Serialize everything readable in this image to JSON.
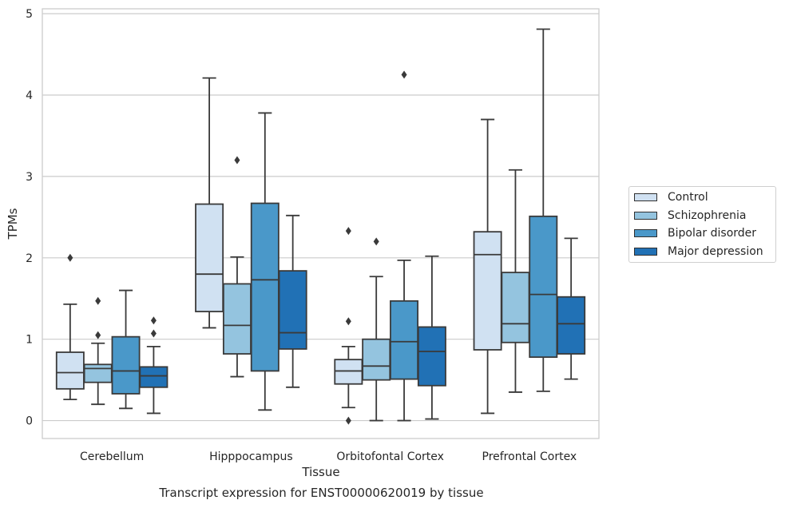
{
  "caption": "Transcript expression for ENST00000620019 by tissue",
  "chart_data": {
    "type": "box",
    "xlabel": "Tissue",
    "ylabel": "TPMs",
    "ylim": [
      -0.22,
      5.06
    ],
    "yticks": [
      0,
      1,
      2,
      3,
      4,
      5
    ],
    "grid": true,
    "legend_position": "right",
    "categories": [
      "Cerebellum",
      "Hipppocampus",
      "Orbitofontal Cortex",
      "Prefrontal Cortex"
    ],
    "series": [
      {
        "name": "Control",
        "color": "#d0e1f2",
        "boxes": [
          {
            "whisker_low": 0.26,
            "q1": 0.39,
            "median": 0.59,
            "q3": 0.84,
            "whisker_high": 1.43,
            "outliers": [
              2.0
            ]
          },
          {
            "whisker_low": 1.14,
            "q1": 1.34,
            "median": 1.8,
            "q3": 2.66,
            "whisker_high": 4.21,
            "outliers": []
          },
          {
            "whisker_low": 0.16,
            "q1": 0.45,
            "median": 0.61,
            "q3": 0.75,
            "whisker_high": 0.91,
            "outliers": [
              1.22,
              2.33,
              0.0
            ]
          },
          {
            "whisker_low": 0.09,
            "q1": 0.87,
            "median": 2.04,
            "q3": 2.32,
            "whisker_high": 3.7,
            "outliers": []
          }
        ]
      },
      {
        "name": "Schizophrenia",
        "color": "#94c4df",
        "boxes": [
          {
            "whisker_low": 0.2,
            "q1": 0.47,
            "median": 0.64,
            "q3": 0.69,
            "whisker_high": 0.95,
            "outliers": [
              1.05,
              1.47
            ]
          },
          {
            "whisker_low": 0.54,
            "q1": 0.82,
            "median": 1.17,
            "q3": 1.68,
            "whisker_high": 2.01,
            "outliers": [
              3.2
            ]
          },
          {
            "whisker_low": 0.0,
            "q1": 0.5,
            "median": 0.67,
            "q3": 1.0,
            "whisker_high": 1.77,
            "outliers": [
              2.2
            ]
          },
          {
            "whisker_low": 0.35,
            "q1": 0.96,
            "median": 1.19,
            "q3": 1.82,
            "whisker_high": 3.08,
            "outliers": []
          }
        ]
      },
      {
        "name": "Bipolar disorder",
        "color": "#4a98c9",
        "boxes": [
          {
            "whisker_low": 0.15,
            "q1": 0.33,
            "median": 0.61,
            "q3": 1.03,
            "whisker_high": 1.6,
            "outliers": []
          },
          {
            "whisker_low": 0.13,
            "q1": 0.61,
            "median": 1.73,
            "q3": 2.67,
            "whisker_high": 3.78,
            "outliers": []
          },
          {
            "whisker_low": 0.0,
            "q1": 0.51,
            "median": 0.97,
            "q3": 1.47,
            "whisker_high": 1.97,
            "outliers": [
              4.25
            ]
          },
          {
            "whisker_low": 0.36,
            "q1": 0.78,
            "median": 1.55,
            "q3": 2.51,
            "whisker_high": 4.81,
            "outliers": []
          }
        ]
      },
      {
        "name": "Major depression",
        "color": "#2171b5",
        "boxes": [
          {
            "whisker_low": 0.09,
            "q1": 0.41,
            "median": 0.55,
            "q3": 0.66,
            "whisker_high": 0.91,
            "outliers": [
              1.07,
              1.23
            ]
          },
          {
            "whisker_low": 0.41,
            "q1": 0.88,
            "median": 1.08,
            "q3": 1.84,
            "whisker_high": 2.52,
            "outliers": []
          },
          {
            "whisker_low": 0.02,
            "q1": 0.43,
            "median": 0.85,
            "q3": 1.15,
            "whisker_high": 2.02,
            "outliers": []
          },
          {
            "whisker_low": 0.51,
            "q1": 0.82,
            "median": 1.19,
            "q3": 1.52,
            "whisker_high": 2.24,
            "outliers": []
          }
        ]
      }
    ]
  }
}
